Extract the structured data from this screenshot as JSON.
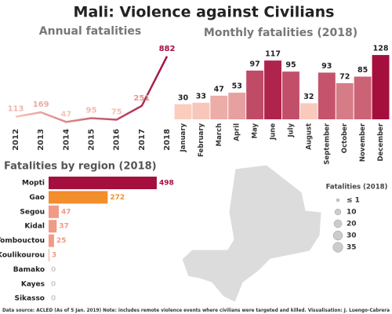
{
  "title": "Mali: Violence against Civilians",
  "chart_data": [
    {
      "type": "line",
      "title": "Annual fatalities",
      "categories": [
        "2012",
        "2013",
        "2014",
        "2015",
        "2016",
        "2017",
        "2018"
      ],
      "values": [
        113,
        169,
        47,
        95,
        75,
        251,
        882
      ],
      "color": [
        "#f6c4b5",
        "#a50f3d"
      ]
    },
    {
      "type": "bar",
      "title": "Monthly fatalities (2018)",
      "categories": [
        "January",
        "February",
        "March",
        "April",
        "May",
        "June",
        "July",
        "August",
        "September",
        "October",
        "November",
        "December"
      ],
      "values": [
        30,
        33,
        47,
        53,
        97,
        117,
        95,
        32,
        93,
        72,
        85,
        128
      ],
      "color": [
        "#fbcdbf",
        "#a50f3d"
      ]
    },
    {
      "type": "bar",
      "orientation": "horizontal",
      "title": "Fatalities by region (2018)",
      "categories": [
        "Mopti",
        "Gao",
        "Segou",
        "Kidal",
        "Tombouctou",
        "Koulikourou",
        "Bamako",
        "Kayes",
        "Sikasso"
      ],
      "values": [
        498,
        272,
        47,
        37,
        25,
        3,
        0,
        0,
        0
      ],
      "colors": [
        "#a50f3d",
        "#f28e2b",
        "#f19a85",
        "#f19a85",
        "#f19a85",
        "#f19a85",
        "#f19a85",
        "#f19a85",
        "#f19a85"
      ]
    }
  ],
  "map": {
    "legend_title": "Fatalities (2018)",
    "sizes": [
      {
        "value": 1,
        "label": "≤ 1"
      },
      10,
      20,
      30,
      35
    ]
  },
  "footer": "Data source: ACLED (As of 5 Jan. 2019)  Note: includes remote violence events where civilians were targeted and killed. Visualisation: J. Luengo-Cabrera"
}
